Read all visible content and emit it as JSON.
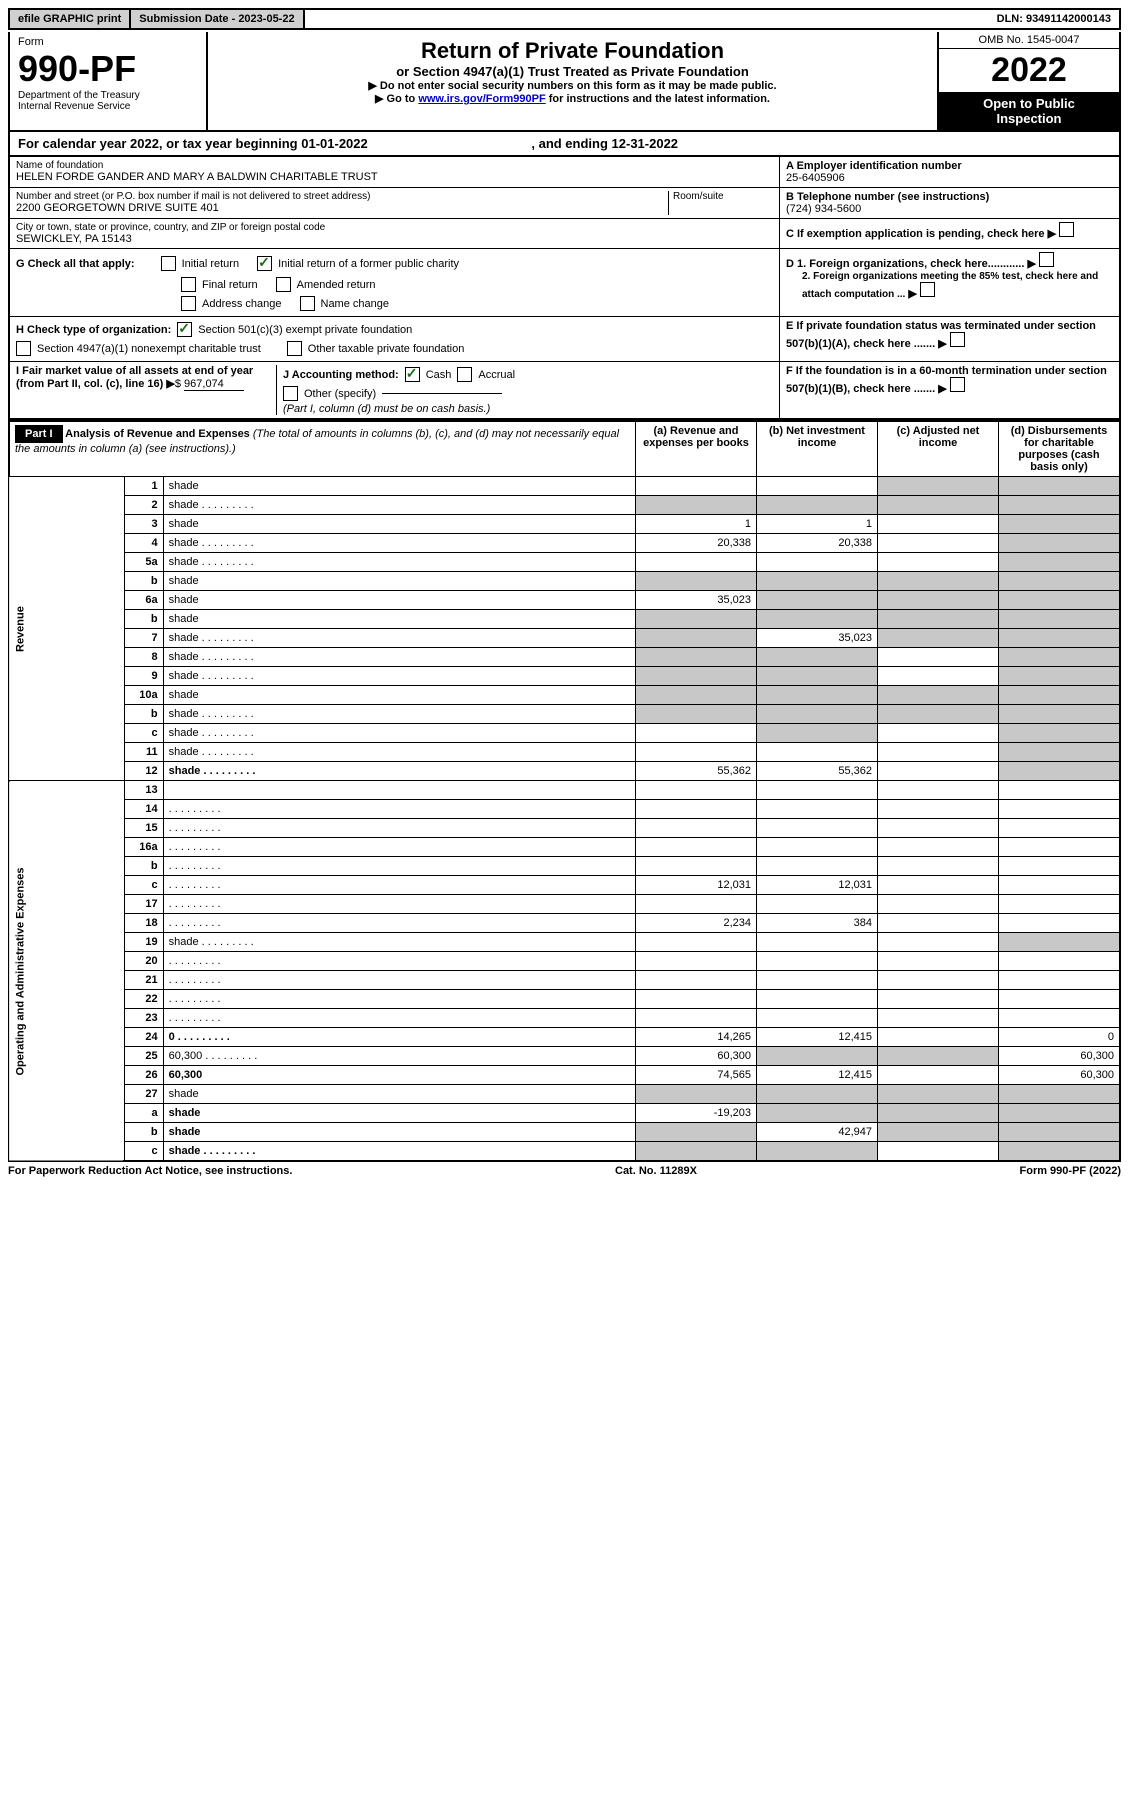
{
  "topbar": {
    "efile": "efile GRAPHIC print",
    "submission_label": "Submission Date - 2023-05-22",
    "dln": "DLN: 93491142000143"
  },
  "header": {
    "form_word": "Form",
    "form_number": "990-PF",
    "dept": "Department of the Treasury",
    "irs": "Internal Revenue Service",
    "title": "Return of Private Foundation",
    "subtitle": "or Section 4947(a)(1) Trust Treated as Private Foundation",
    "instr1": "▶ Do not enter social security numbers on this form as it may be made public.",
    "instr2_pre": "▶ Go to ",
    "instr2_link": "www.irs.gov/Form990PF",
    "instr2_post": " for instructions and the latest information.",
    "omb": "OMB No. 1545-0047",
    "year": "2022",
    "open1": "Open to Public",
    "open2": "Inspection"
  },
  "calyear": {
    "text_pre": "For calendar year 2022, or tax year beginning ",
    "begin": "01-01-2022",
    "text_mid": " , and ending ",
    "end": "12-31-2022"
  },
  "info": {
    "name_label": "Name of foundation",
    "name": "HELEN FORDE GANDER AND MARY A BALDWIN CHARITABLE TRUST",
    "addr_label": "Number and street (or P.O. box number if mail is not delivered to street address)",
    "room_label": "Room/suite",
    "addr": "2200 GEORGETOWN DRIVE SUITE 401",
    "city_label": "City or town, state or province, country, and ZIP or foreign postal code",
    "city": "SEWICKLEY, PA  15143",
    "A_label": "A Employer identification number",
    "A_val": "25-6405906",
    "B_label": "B Telephone number (see instructions)",
    "B_val": "(724) 934-5600",
    "C_label": "C If exemption application is pending, check here",
    "D1_label": "D 1. Foreign organizations, check here............",
    "D2_label": "2. Foreign organizations meeting the 85% test, check here and attach computation ...",
    "E_label": "E  If private foundation status was terminated under section 507(b)(1)(A), check here .......",
    "F_label": "F  If the foundation is in a 60-month termination under section 507(b)(1)(B), check here .......",
    "G_label": "G Check all that apply:",
    "G_opts": [
      "Initial return",
      "Initial return of a former public charity",
      "Final return",
      "Amended return",
      "Address change",
      "Name change"
    ],
    "H_label": "H Check type of organization:",
    "H_opt1": "Section 501(c)(3) exempt private foundation",
    "H_opt2": "Section 4947(a)(1) nonexempt charitable trust",
    "H_opt3": "Other taxable private foundation",
    "I_label": "I Fair market value of all assets at end of year (from Part II, col. (c), line 16)",
    "I_val": "967,074",
    "J_label": "J Accounting method:",
    "J_cash": "Cash",
    "J_accrual": "Accrual",
    "J_other": "Other (specify)",
    "J_note": "(Part I, column (d) must be on cash basis.)"
  },
  "part1": {
    "label": "Part I",
    "title": "Analysis of Revenue and Expenses",
    "title_note": " (The total of amounts in columns (b), (c), and (d) may not necessarily equal the amounts in column (a) (see instructions).)",
    "col_a": "(a) Revenue and expenses per books",
    "col_b": "(b) Net investment income",
    "col_c": "(c) Adjusted net income",
    "col_d": "(d) Disbursements for charitable purposes (cash basis only)",
    "revenue_label": "Revenue",
    "expense_label": "Operating and Administrative Expenses",
    "rows": [
      {
        "n": "1",
        "d": "shade",
        "a": "",
        "b": "",
        "c": "shade"
      },
      {
        "n": "2",
        "d": "shade",
        "a": "shade",
        "b": "shade",
        "c": "shade",
        "dot": true
      },
      {
        "n": "3",
        "d": "shade",
        "a": "1",
        "b": "1",
        "c": ""
      },
      {
        "n": "4",
        "d": "shade",
        "a": "20,338",
        "b": "20,338",
        "c": "",
        "dot": true
      },
      {
        "n": "5a",
        "d": "shade",
        "a": "",
        "b": "",
        "c": "",
        "dot": true
      },
      {
        "n": "b",
        "d": "shade",
        "a": "shade",
        "b": "shade",
        "c": "shade"
      },
      {
        "n": "6a",
        "d": "shade",
        "a": "35,023",
        "b": "shade",
        "c": "shade"
      },
      {
        "n": "b",
        "d": "shade",
        "a": "shade",
        "b": "shade",
        "c": "shade"
      },
      {
        "n": "7",
        "d": "shade",
        "a": "shade",
        "b": "35,023",
        "c": "shade",
        "dot": true
      },
      {
        "n": "8",
        "d": "shade",
        "a": "shade",
        "b": "shade",
        "c": "",
        "dot": true
      },
      {
        "n": "9",
        "d": "shade",
        "a": "shade",
        "b": "shade",
        "c": "",
        "dot": true
      },
      {
        "n": "10a",
        "d": "shade",
        "a": "shade",
        "b": "shade",
        "c": "shade"
      },
      {
        "n": "b",
        "d": "shade",
        "a": "shade",
        "b": "shade",
        "c": "shade",
        "dot": true
      },
      {
        "n": "c",
        "d": "shade",
        "a": "",
        "b": "shade",
        "c": "",
        "dot": true
      },
      {
        "n": "11",
        "d": "shade",
        "a": "",
        "b": "",
        "c": "",
        "dot": true
      },
      {
        "n": "12",
        "d": "shade",
        "a": "55,362",
        "b": "55,362",
        "c": "",
        "bold": true,
        "dot": true
      },
      {
        "n": "13",
        "d": "",
        "a": "",
        "b": "",
        "c": ""
      },
      {
        "n": "14",
        "d": "",
        "a": "",
        "b": "",
        "c": "",
        "dot": true
      },
      {
        "n": "15",
        "d": "",
        "a": "",
        "b": "",
        "c": "",
        "dot": true
      },
      {
        "n": "16a",
        "d": "",
        "a": "",
        "b": "",
        "c": "",
        "dot": true
      },
      {
        "n": "b",
        "d": "",
        "a": "",
        "b": "",
        "c": "",
        "dot": true
      },
      {
        "n": "c",
        "d": "",
        "a": "12,031",
        "b": "12,031",
        "c": "",
        "dot": true
      },
      {
        "n": "17",
        "d": "",
        "a": "",
        "b": "",
        "c": "",
        "dot": true
      },
      {
        "n": "18",
        "d": "",
        "a": "2,234",
        "b": "384",
        "c": "",
        "dot": true
      },
      {
        "n": "19",
        "d": "shade",
        "a": "",
        "b": "",
        "c": "",
        "dot": true
      },
      {
        "n": "20",
        "d": "",
        "a": "",
        "b": "",
        "c": "",
        "dot": true
      },
      {
        "n": "21",
        "d": "",
        "a": "",
        "b": "",
        "c": "",
        "dot": true
      },
      {
        "n": "22",
        "d": "",
        "a": "",
        "b": "",
        "c": "",
        "dot": true
      },
      {
        "n": "23",
        "d": "",
        "a": "",
        "b": "",
        "c": "",
        "dot": true
      },
      {
        "n": "24",
        "d": "0",
        "a": "14,265",
        "b": "12,415",
        "c": "",
        "bold": true,
        "dot": true
      },
      {
        "n": "25",
        "d": "60,300",
        "a": "60,300",
        "b": "shade",
        "c": "shade",
        "dot": true
      },
      {
        "n": "26",
        "d": "60,300",
        "a": "74,565",
        "b": "12,415",
        "c": "",
        "bold": true
      },
      {
        "n": "27",
        "d": "shade",
        "a": "shade",
        "b": "shade",
        "c": "shade"
      },
      {
        "n": "a",
        "d": "shade",
        "a": "-19,203",
        "b": "shade",
        "c": "shade",
        "bold": true
      },
      {
        "n": "b",
        "d": "shade",
        "a": "shade",
        "b": "42,947",
        "c": "shade",
        "bold": true
      },
      {
        "n": "c",
        "d": "shade",
        "a": "shade",
        "b": "shade",
        "c": "",
        "bold": true,
        "dot": true
      }
    ]
  },
  "footer": {
    "left": "For Paperwork Reduction Act Notice, see instructions.",
    "mid": "Cat. No. 11289X",
    "right": "Form 990-PF (2022)"
  }
}
